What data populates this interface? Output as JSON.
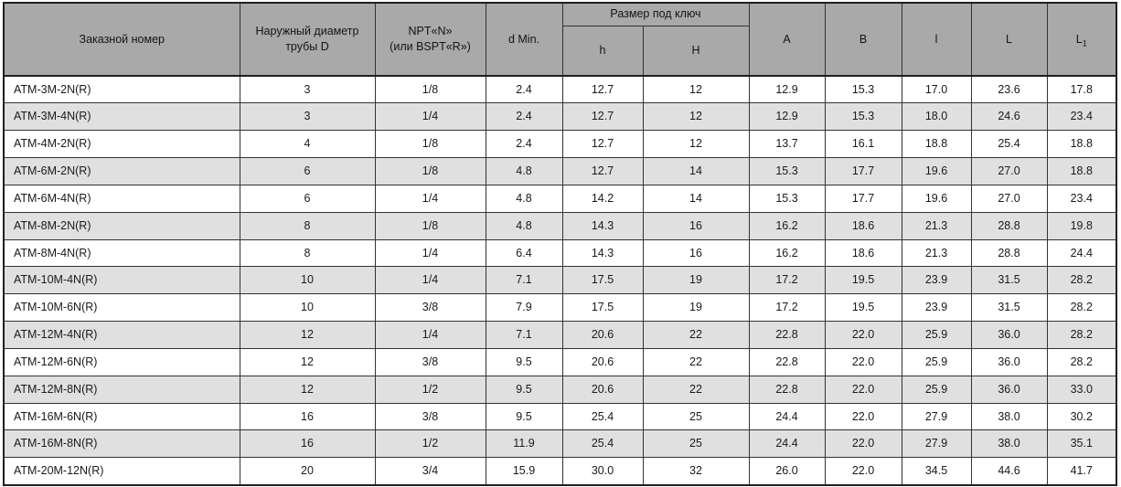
{
  "table": {
    "headers": {
      "order_number": "Заказной номер",
      "outer_diameter": "Наружный диаметр\nтрубы D",
      "npt": "NPT«N»\n(или BSPT«R»)",
      "d_min": "d Min.",
      "wrench_group": "Размер под ключ",
      "h_small": "h",
      "h_big": "H",
      "a": "A",
      "b": "B",
      "l_small": "l",
      "l_big": "L",
      "l1_base": "L",
      "l1_sub": "1"
    },
    "rows": [
      {
        "cells": [
          "ATM-3M-2N(R)",
          "3",
          "1/8",
          "2.4",
          "12.7",
          "12",
          "12.9",
          "15.3",
          "17.0",
          "23.6",
          "17.8"
        ]
      },
      {
        "cells": [
          "ATM-3M-4N(R)",
          "3",
          "1/4",
          "2.4",
          "12.7",
          "12",
          "12.9",
          "15.3",
          "18.0",
          "24.6",
          "23.4"
        ]
      },
      {
        "cells": [
          "ATM-4M-2N(R)",
          "4",
          "1/8",
          "2.4",
          "12.7",
          "12",
          "13.7",
          "16.1",
          "18.8",
          "25.4",
          "18.8"
        ]
      },
      {
        "cells": [
          "ATM-6M-2N(R)",
          "6",
          "1/8",
          "4.8",
          "12.7",
          "14",
          "15.3",
          "17.7",
          "19.6",
          "27.0",
          "18.8"
        ]
      },
      {
        "cells": [
          "ATM-6M-4N(R)",
          "6",
          "1/4",
          "4.8",
          "14.2",
          "14",
          "15.3",
          "17.7",
          "19.6",
          "27.0",
          "23.4"
        ]
      },
      {
        "cells": [
          "ATM-8M-2N(R)",
          "8",
          "1/8",
          "4.8",
          "14.3",
          "16",
          "16.2",
          "18.6",
          "21.3",
          "28.8",
          "19.8"
        ]
      },
      {
        "cells": [
          "ATM-8M-4N(R)",
          "8",
          "1/4",
          "6.4",
          "14.3",
          "16",
          "16.2",
          "18.6",
          "21.3",
          "28.8",
          "24.4"
        ]
      },
      {
        "cells": [
          "ATM-10M-4N(R)",
          "10",
          "1/4",
          "7.1",
          "17.5",
          "19",
          "17.2",
          "19.5",
          "23.9",
          "31.5",
          "28.2"
        ]
      },
      {
        "cells": [
          "ATM-10M-6N(R)",
          "10",
          "3/8",
          "7.9",
          "17.5",
          "19",
          "17.2",
          "19.5",
          "23.9",
          "31.5",
          "28.2"
        ]
      },
      {
        "cells": [
          "ATM-12M-4N(R)",
          "12",
          "1/4",
          "7.1",
          "20.6",
          "22",
          "22.8",
          "22.0",
          "25.9",
          "36.0",
          "28.2"
        ]
      },
      {
        "cells": [
          "ATM-12M-6N(R)",
          "12",
          "3/8",
          "9.5",
          "20.6",
          "22",
          "22.8",
          "22.0",
          "25.9",
          "36.0",
          "28.2"
        ]
      },
      {
        "cells": [
          "ATM-12M-8N(R)",
          "12",
          "1/2",
          "9.5",
          "20.6",
          "22",
          "22.8",
          "22.0",
          "25.9",
          "36.0",
          "33.0"
        ]
      },
      {
        "cells": [
          "ATM-16M-6N(R)",
          "16",
          "3/8",
          "9.5",
          "25.4",
          "25",
          "24.4",
          "22.0",
          "27.9",
          "38.0",
          "30.2"
        ]
      },
      {
        "cells": [
          "ATM-16M-8N(R)",
          "16",
          "1/2",
          "11.9",
          "25.4",
          "25",
          "24.4",
          "22.0",
          "27.9",
          "38.0",
          "35.1"
        ]
      },
      {
        "cells": [
          "ATM-20M-12N(R)",
          "20",
          "3/4",
          "15.9",
          "30.0",
          "32",
          "26.0",
          "22.0",
          "34.5",
          "44.6",
          "41.7"
        ]
      }
    ]
  },
  "colors": {
    "header_bg": "#a9a9a9",
    "row_alt_bg": "#e0e0e0",
    "row_bg": "#ffffff",
    "border": "#333333",
    "outer_border": "#1f1f1f",
    "text": "#1a1a1a"
  }
}
